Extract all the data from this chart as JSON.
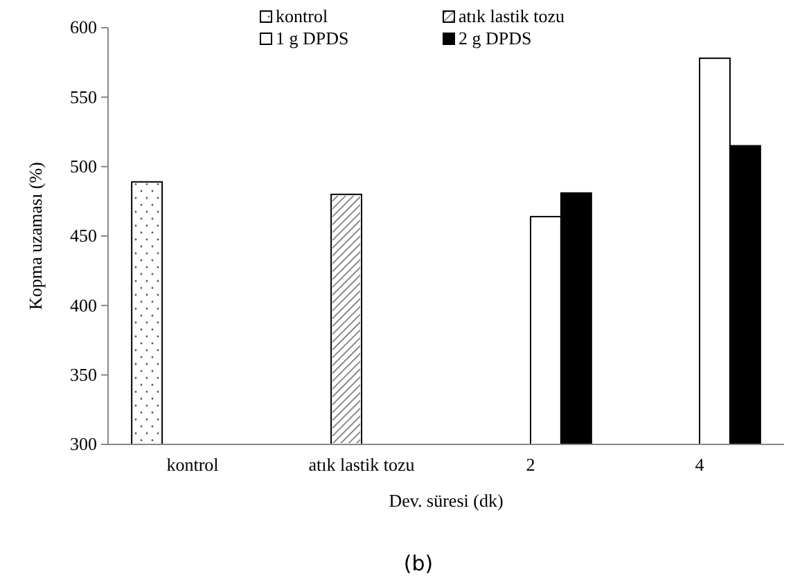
{
  "chart_data": {
    "type": "bar",
    "categories": [
      "kontrol",
      "atık lastik tozu",
      "2",
      "4"
    ],
    "series": [
      {
        "name": "kontrol",
        "color": "#ffffff",
        "values": [
          489,
          null,
          null,
          null
        ]
      },
      {
        "name": "atık lastik tozu",
        "color": "#ffffff",
        "values": [
          null,
          480,
          null,
          null
        ]
      },
      {
        "name": "1 g DPDS",
        "color": "#ffffff",
        "values": [
          null,
          null,
          464,
          578
        ]
      },
      {
        "name": "2 g DPDS",
        "color": "#000000",
        "values": [
          null,
          null,
          481,
          515
        ]
      }
    ],
    "ylim": [
      300,
      600
    ],
    "yticks": [
      300,
      350,
      400,
      450,
      500,
      550,
      600
    ],
    "ylabel": "Kopma uzaması (%)",
    "xlabel": "Dev. süresi (dk)",
    "annotations": [
      "(b)"
    ],
    "legend": "top",
    "grid": false
  }
}
